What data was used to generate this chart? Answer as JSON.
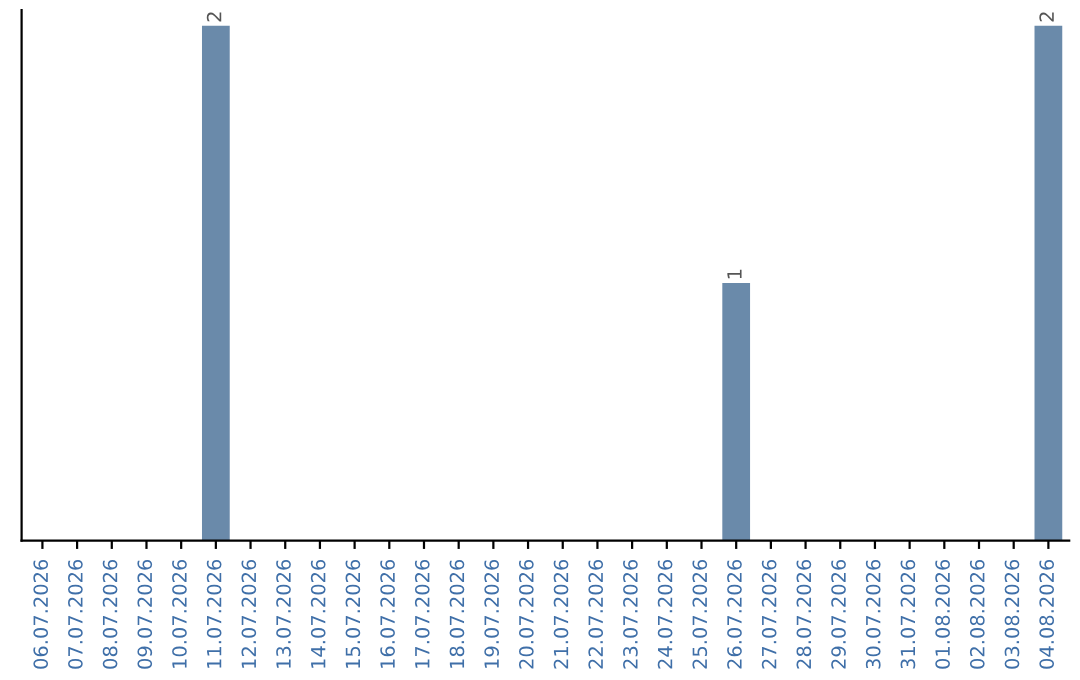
{
  "chart_data": {
    "type": "bar",
    "categories": [
      "06.07.2026",
      "07.07.2026",
      "08.07.2026",
      "09.07.2026",
      "10.07.2026",
      "11.07.2026",
      "12.07.2026",
      "13.07.2026",
      "14.07.2026",
      "15.07.2026",
      "16.07.2026",
      "17.07.2026",
      "18.07.2026",
      "19.07.2026",
      "20.07.2026",
      "21.07.2026",
      "22.07.2026",
      "23.07.2026",
      "24.07.2026",
      "25.07.2026",
      "26.07.2026",
      "27.07.2026",
      "28.07.2026",
      "29.07.2026",
      "30.07.2026",
      "31.07.2026",
      "01.08.2026",
      "02.08.2026",
      "03.08.2026",
      "04.08.2026"
    ],
    "values": [
      0,
      0,
      0,
      0,
      0,
      2,
      0,
      0,
      0,
      0,
      0,
      0,
      0,
      0,
      0,
      0,
      0,
      0,
      0,
      0,
      1,
      0,
      0,
      0,
      0,
      0,
      0,
      0,
      0,
      2
    ],
    "value_labels": [
      null,
      null,
      null,
      null,
      null,
      "2",
      null,
      null,
      null,
      null,
      null,
      null,
      null,
      null,
      null,
      null,
      null,
      null,
      null,
      null,
      "1",
      null,
      null,
      null,
      null,
      null,
      null,
      null,
      null,
      "2"
    ],
    "color": "#6a8aaa",
    "tick_labels": "x",
    "grid": false,
    "legend": false
  }
}
